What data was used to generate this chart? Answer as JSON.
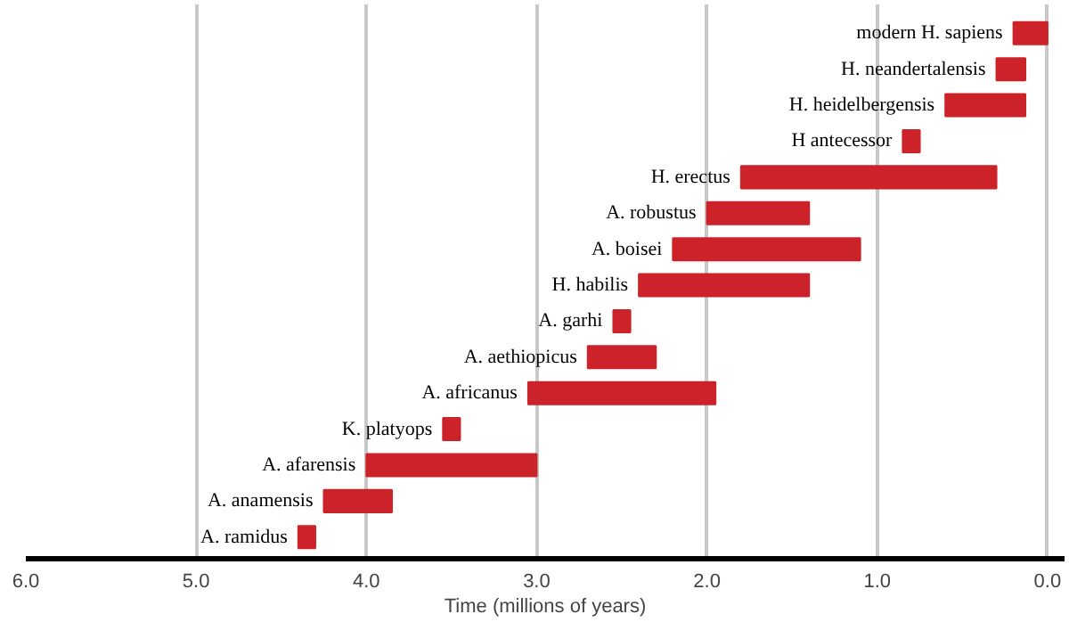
{
  "chart_data": {
    "type": "bar",
    "orientation": "horizontal",
    "xlabel": "Time (millions of years)",
    "categories": [
      "modern H. sapiens",
      "H. neandertalensis",
      "H. heidelbergensis",
      "H antecessor",
      "H. erectus",
      "A. robustus",
      "A. boisei",
      "H. habilis",
      "A. garhi",
      "A. aethiopicus",
      "A. africanus",
      "K. platyops",
      "A. afarensis",
      "A. anamensis",
      "A. ramidus"
    ],
    "base": [
      0.0,
      0.13,
      0.13,
      0.75,
      0.3,
      1.4,
      1.1,
      1.4,
      2.45,
      2.3,
      1.95,
      3.45,
      3.0,
      3.85,
      4.3
    ],
    "values": [
      0.2,
      0.17,
      0.47,
      0.1,
      1.5,
      0.6,
      1.1,
      1.0,
      0.1,
      0.4,
      1.1,
      0.1,
      1.0,
      0.4,
      0.1
    ],
    "color": "#cc2229",
    "xlim": [
      6.0,
      -0.1
    ],
    "xticks": [
      {
        "value": 6,
        "label": "6.0"
      },
      {
        "value": 5,
        "label": "5.0"
      },
      {
        "value": 4,
        "label": "4.0"
      },
      {
        "value": 3,
        "label": "3.0"
      },
      {
        "value": 2,
        "label": "2.0"
      },
      {
        "value": 1,
        "label": "1.0"
      },
      {
        "value": 0,
        "label": "0.0"
      }
    ],
    "grid": "x"
  }
}
